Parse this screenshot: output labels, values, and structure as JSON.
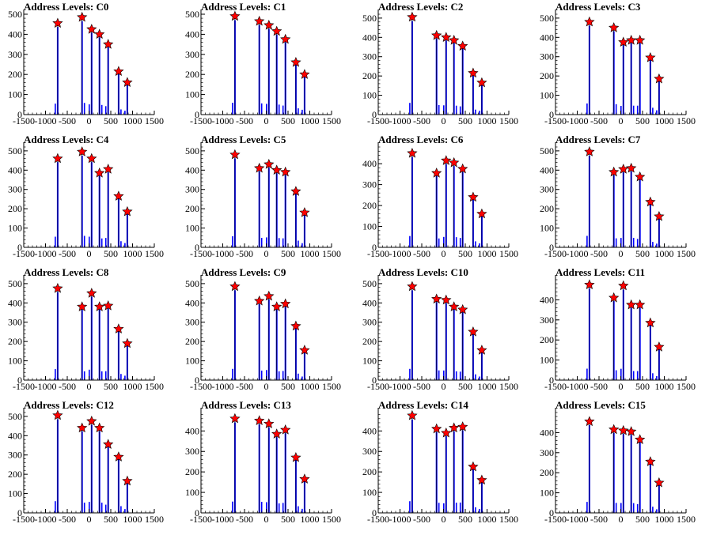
{
  "chart_data": [
    {
      "type": "bar",
      "title": "Address Levels: C0",
      "xlim": [
        -1500,
        1500
      ],
      "ylim": [
        0,
        500
      ],
      "xticks": [
        -1500,
        -1000,
        -500,
        0,
        500,
        1000,
        1500
      ],
      "yticks": [
        0,
        100,
        200,
        300,
        400,
        500
      ],
      "xtick_labels": [
        "-1500",
        "-1000",
        "-500",
        "0",
        "500",
        "1000",
        "1500"
      ],
      "ytick_labels": [
        "0",
        "100",
        "200",
        "300",
        "400",
        "500"
      ],
      "peaks": [
        {
          "x": -720,
          "y": 455
        },
        {
          "x": -160,
          "y": 485
        },
        {
          "x": 60,
          "y": 425
        },
        {
          "x": 240,
          "y": 400
        },
        {
          "x": 440,
          "y": 350
        },
        {
          "x": 680,
          "y": 215
        },
        {
          "x": 880,
          "y": 160
        }
      ]
    },
    {
      "type": "bar",
      "title": "Address Levels: C1",
      "xlim": [
        -1500,
        1500
      ],
      "ylim": [
        0,
        500
      ],
      "xticks": [
        -1500,
        -1000,
        -500,
        0,
        500,
        1000,
        1500
      ],
      "yticks": [
        0,
        100,
        200,
        300,
        400,
        500
      ],
      "xtick_labels": [
        "-1500",
        "-1000",
        "-500",
        "0",
        "500",
        "1000",
        "1500"
      ],
      "ytick_labels": [
        "0",
        "100",
        "200",
        "300",
        "400",
        "500"
      ],
      "peaks": [
        {
          "x": -720,
          "y": 490
        },
        {
          "x": -160,
          "y": 465
        },
        {
          "x": 60,
          "y": 445
        },
        {
          "x": 240,
          "y": 415
        },
        {
          "x": 440,
          "y": 375
        },
        {
          "x": 680,
          "y": 260
        },
        {
          "x": 880,
          "y": 200
        }
      ]
    },
    {
      "type": "bar",
      "title": "Address Levels: C2",
      "xlim": [
        -1500,
        1500
      ],
      "ylim": [
        0,
        520
      ],
      "xticks": [
        -1500,
        -1000,
        -500,
        0,
        500,
        1000,
        1500
      ],
      "yticks": [
        0,
        100,
        200,
        300,
        400,
        500
      ],
      "xtick_labels": [
        "-1500",
        "-1000",
        "-500",
        "0",
        "500",
        "1000",
        "1500"
      ],
      "ytick_labels": [
        "0",
        "100",
        "200",
        "300",
        "400",
        "500"
      ],
      "peaks": [
        {
          "x": -720,
          "y": 505
        },
        {
          "x": -160,
          "y": 410
        },
        {
          "x": 60,
          "y": 400
        },
        {
          "x": 240,
          "y": 385
        },
        {
          "x": 440,
          "y": 355
        },
        {
          "x": 680,
          "y": 215
        },
        {
          "x": 880,
          "y": 165
        }
      ]
    },
    {
      "type": "bar",
      "title": "Address Levels: C3",
      "xlim": [
        -1500,
        1500
      ],
      "ylim": [
        0,
        520
      ],
      "xticks": [
        -1500,
        -1000,
        -500,
        0,
        500,
        1000,
        1500
      ],
      "yticks": [
        0,
        100,
        200,
        300,
        400,
        500
      ],
      "xtick_labels": [
        "-1500",
        "-1000",
        "-500",
        "0",
        "500",
        "1000",
        "1500"
      ],
      "ytick_labels": [
        "0",
        "100",
        "200",
        "300",
        "400",
        "500"
      ],
      "peaks": [
        {
          "x": -720,
          "y": 480
        },
        {
          "x": -160,
          "y": 450
        },
        {
          "x": 60,
          "y": 375
        },
        {
          "x": 240,
          "y": 385
        },
        {
          "x": 440,
          "y": 385
        },
        {
          "x": 680,
          "y": 295
        },
        {
          "x": 880,
          "y": 185
        }
      ]
    },
    {
      "type": "bar",
      "title": "Address Levels: C4",
      "xlim": [
        -1500,
        1500
      ],
      "ylim": [
        0,
        520
      ],
      "xticks": [
        -1500,
        -1000,
        -500,
        0,
        500,
        1000,
        1500
      ],
      "yticks": [
        0,
        100,
        200,
        300,
        400,
        500
      ],
      "xtick_labels": [
        "-1500",
        "-1000",
        "-500",
        "0",
        "500",
        "1000",
        "1500"
      ],
      "ytick_labels": [
        "0",
        "100",
        "200",
        "300",
        "400",
        "500"
      ],
      "peaks": [
        {
          "x": -720,
          "y": 460
        },
        {
          "x": -160,
          "y": 495
        },
        {
          "x": 60,
          "y": 460
        },
        {
          "x": 240,
          "y": 385
        },
        {
          "x": 440,
          "y": 405
        },
        {
          "x": 680,
          "y": 265
        },
        {
          "x": 880,
          "y": 185
        }
      ]
    },
    {
      "type": "bar",
      "title": "Address Levels: C5",
      "xlim": [
        -1500,
        1500
      ],
      "ylim": [
        0,
        520
      ],
      "xticks": [
        -1500,
        -1000,
        -500,
        0,
        500,
        1000,
        1500
      ],
      "yticks": [
        0,
        100,
        200,
        300,
        400,
        500
      ],
      "xtick_labels": [
        "-1500",
        "-1000",
        "-500",
        "0",
        "500",
        "1000",
        "1500"
      ],
      "ytick_labels": [
        "0",
        "100",
        "200",
        "300",
        "400",
        "500"
      ],
      "peaks": [
        {
          "x": -720,
          "y": 480
        },
        {
          "x": -160,
          "y": 410
        },
        {
          "x": 60,
          "y": 430
        },
        {
          "x": 240,
          "y": 400
        },
        {
          "x": 440,
          "y": 390
        },
        {
          "x": 680,
          "y": 290
        },
        {
          "x": 880,
          "y": 180
        }
      ]
    },
    {
      "type": "bar",
      "title": "Address Levels: C6",
      "xlim": [
        -1500,
        1500
      ],
      "ylim": [
        0,
        480
      ],
      "xticks": [
        -1500,
        -1000,
        -500,
        0,
        500,
        1000,
        1500
      ],
      "yticks": [
        0,
        100,
        200,
        300,
        400
      ],
      "xtick_labels": [
        "-1500",
        "-1000",
        "-500",
        "0",
        "500",
        "1000",
        "1500"
      ],
      "ytick_labels": [
        "0",
        "100",
        "200",
        "300",
        "400"
      ],
      "peaks": [
        {
          "x": -720,
          "y": 450
        },
        {
          "x": -160,
          "y": 355
        },
        {
          "x": 60,
          "y": 415
        },
        {
          "x": 240,
          "y": 405
        },
        {
          "x": 440,
          "y": 375
        },
        {
          "x": 680,
          "y": 240
        },
        {
          "x": 880,
          "y": 160
        }
      ]
    },
    {
      "type": "bar",
      "title": "Address Levels: C7",
      "xlim": [
        -1500,
        1500
      ],
      "ylim": [
        0,
        520
      ],
      "xticks": [
        -1500,
        -1000,
        -500,
        0,
        500,
        1000,
        1500
      ],
      "yticks": [
        0,
        100,
        200,
        300,
        400,
        500
      ],
      "xtick_labels": [
        "-1500",
        "-1000",
        "-500",
        "0",
        "500",
        "1000",
        "1500"
      ],
      "ytick_labels": [
        "0",
        "100",
        "200",
        "300",
        "400",
        "500"
      ],
      "peaks": [
        {
          "x": -720,
          "y": 495
        },
        {
          "x": -160,
          "y": 390
        },
        {
          "x": 60,
          "y": 405
        },
        {
          "x": 240,
          "y": 410
        },
        {
          "x": 440,
          "y": 365
        },
        {
          "x": 680,
          "y": 235
        },
        {
          "x": 880,
          "y": 160
        }
      ]
    },
    {
      "type": "bar",
      "title": "Address Levels: C8",
      "xlim": [
        -1500,
        1500
      ],
      "ylim": [
        0,
        520
      ],
      "xticks": [
        -1500,
        -1000,
        -500,
        0,
        500,
        1000,
        1500
      ],
      "yticks": [
        0,
        100,
        200,
        300,
        400,
        500
      ],
      "xtick_labels": [
        "-1500",
        "-1000",
        "-500",
        "0",
        "500",
        "1000",
        "1500"
      ],
      "ytick_labels": [
        "0",
        "100",
        "200",
        "300",
        "400",
        "500"
      ],
      "peaks": [
        {
          "x": -720,
          "y": 475
        },
        {
          "x": -160,
          "y": 380
        },
        {
          "x": 60,
          "y": 450
        },
        {
          "x": 240,
          "y": 380
        },
        {
          "x": 440,
          "y": 385
        },
        {
          "x": 680,
          "y": 265
        },
        {
          "x": 880,
          "y": 190
        }
      ]
    },
    {
      "type": "bar",
      "title": "Address Levels: C9",
      "xlim": [
        -1500,
        1500
      ],
      "ylim": [
        0,
        520
      ],
      "xticks": [
        -1500,
        -1000,
        -500,
        0,
        500,
        1000,
        1500
      ],
      "yticks": [
        0,
        100,
        200,
        300,
        400,
        500
      ],
      "xtick_labels": [
        "-1500",
        "-1000",
        "-500",
        "0",
        "500",
        "1000",
        "1500"
      ],
      "ytick_labels": [
        "0",
        "100",
        "200",
        "300",
        "400",
        "500"
      ],
      "peaks": [
        {
          "x": -720,
          "y": 485
        },
        {
          "x": -160,
          "y": 410
        },
        {
          "x": 60,
          "y": 435
        },
        {
          "x": 240,
          "y": 380
        },
        {
          "x": 440,
          "y": 395
        },
        {
          "x": 680,
          "y": 280
        },
        {
          "x": 880,
          "y": 155
        }
      ]
    },
    {
      "type": "bar",
      "title": "Address Levels: C10",
      "xlim": [
        -1500,
        1500
      ],
      "ylim": [
        0,
        520
      ],
      "xticks": [
        -1500,
        -1000,
        -500,
        0,
        500,
        1000,
        1500
      ],
      "yticks": [
        0,
        100,
        200,
        300,
        400,
        500
      ],
      "xtick_labels": [
        "-1500",
        "-1000",
        "-500",
        "0",
        "500",
        "1000",
        "1500"
      ],
      "ytick_labels": [
        "0",
        "100",
        "200",
        "300",
        "400",
        "500"
      ],
      "peaks": [
        {
          "x": -720,
          "y": 485
        },
        {
          "x": -160,
          "y": 420
        },
        {
          "x": 60,
          "y": 415
        },
        {
          "x": 240,
          "y": 380
        },
        {
          "x": 440,
          "y": 365
        },
        {
          "x": 680,
          "y": 250
        },
        {
          "x": 880,
          "y": 155
        }
      ]
    },
    {
      "type": "bar",
      "title": "Address Levels: C11",
      "xlim": [
        -1500,
        1500
      ],
      "ylim": [
        0,
        500
      ],
      "xticks": [
        -1500,
        -1000,
        -500,
        0,
        500,
        1000,
        1500
      ],
      "yticks": [
        0,
        100,
        200,
        300,
        400
      ],
      "xtick_labels": [
        "-1500",
        "-1000",
        "-500",
        "0",
        "500",
        "1000",
        "1500"
      ],
      "ytick_labels": [
        "0",
        "100",
        "200",
        "300",
        "400"
      ],
      "peaks": [
        {
          "x": -720,
          "y": 475
        },
        {
          "x": -160,
          "y": 410
        },
        {
          "x": 60,
          "y": 470
        },
        {
          "x": 240,
          "y": 375
        },
        {
          "x": 440,
          "y": 375
        },
        {
          "x": 680,
          "y": 285
        },
        {
          "x": 880,
          "y": 165
        }
      ]
    },
    {
      "type": "bar",
      "title": "Address Levels: C12",
      "xlim": [
        -1500,
        1500
      ],
      "ylim": [
        0,
        520
      ],
      "xticks": [
        -1500,
        -1000,
        -500,
        0,
        500,
        1000,
        1500
      ],
      "yticks": [
        0,
        100,
        200,
        300,
        400,
        500
      ],
      "xtick_labels": [
        "-1500",
        "-1000",
        "-500",
        "0",
        "500",
        "1000",
        "1500"
      ],
      "ytick_labels": [
        "0",
        "100",
        "200",
        "300",
        "400",
        "500"
      ],
      "peaks": [
        {
          "x": -720,
          "y": 505
        },
        {
          "x": -160,
          "y": 440
        },
        {
          "x": 60,
          "y": 475
        },
        {
          "x": 240,
          "y": 440
        },
        {
          "x": 440,
          "y": 355
        },
        {
          "x": 680,
          "y": 290
        },
        {
          "x": 880,
          "y": 165
        }
      ]
    },
    {
      "type": "bar",
      "title": "Address Levels: C13",
      "xlim": [
        -1500,
        1500
      ],
      "ylim": [
        0,
        490
      ],
      "xticks": [
        -1500,
        -1000,
        -500,
        0,
        500,
        1000,
        1500
      ],
      "yticks": [
        0,
        100,
        200,
        300,
        400
      ],
      "xtick_labels": [
        "-1500",
        "-1000",
        "-500",
        "0",
        "500",
        "1000",
        "1500"
      ],
      "ytick_labels": [
        "0",
        "100",
        "200",
        "300",
        "400"
      ],
      "peaks": [
        {
          "x": -720,
          "y": 460
        },
        {
          "x": -160,
          "y": 450
        },
        {
          "x": 60,
          "y": 435
        },
        {
          "x": 240,
          "y": 385
        },
        {
          "x": 440,
          "y": 405
        },
        {
          "x": 680,
          "y": 270
        },
        {
          "x": 880,
          "y": 165
        }
      ]
    },
    {
      "type": "bar",
      "title": "Address Levels: C14",
      "xlim": [
        -1500,
        1500
      ],
      "ylim": [
        0,
        490
      ],
      "xticks": [
        -1500,
        -1000,
        -500,
        0,
        500,
        1000,
        1500
      ],
      "yticks": [
        0,
        100,
        200,
        300,
        400
      ],
      "xtick_labels": [
        "-1500",
        "-1000",
        "-500",
        "0",
        "500",
        "1000",
        "1500"
      ],
      "ytick_labels": [
        "0",
        "100",
        "200",
        "300",
        "400"
      ],
      "peaks": [
        {
          "x": -720,
          "y": 475
        },
        {
          "x": -160,
          "y": 410
        },
        {
          "x": 60,
          "y": 390
        },
        {
          "x": 240,
          "y": 415
        },
        {
          "x": 440,
          "y": 420
        },
        {
          "x": 680,
          "y": 225
        },
        {
          "x": 880,
          "y": 160
        }
      ]
    },
    {
      "type": "bar",
      "title": "Address Levels: C15",
      "xlim": [
        -1500,
        1500
      ],
      "ylim": [
        0,
        500
      ],
      "xticks": [
        -1500,
        -1000,
        -500,
        0,
        500,
        1000,
        1500
      ],
      "yticks": [
        0,
        100,
        200,
        300,
        400
      ],
      "xtick_labels": [
        "-1500",
        "-1000",
        "-500",
        "0",
        "500",
        "1000",
        "1500"
      ],
      "ytick_labels": [
        "0",
        "100",
        "200",
        "300",
        "400"
      ],
      "peaks": [
        {
          "x": -720,
          "y": 455
        },
        {
          "x": -160,
          "y": 415
        },
        {
          "x": 60,
          "y": 410
        },
        {
          "x": 240,
          "y": 405
        },
        {
          "x": 440,
          "y": 365
        },
        {
          "x": 680,
          "y": 255
        },
        {
          "x": 880,
          "y": 150
        }
      ]
    }
  ],
  "colors": {
    "bars": "#0000ff",
    "markers": "#ff0000",
    "marker_outline": "#000000",
    "axes": "#000000"
  },
  "marker_icon": "star-marker-icon"
}
